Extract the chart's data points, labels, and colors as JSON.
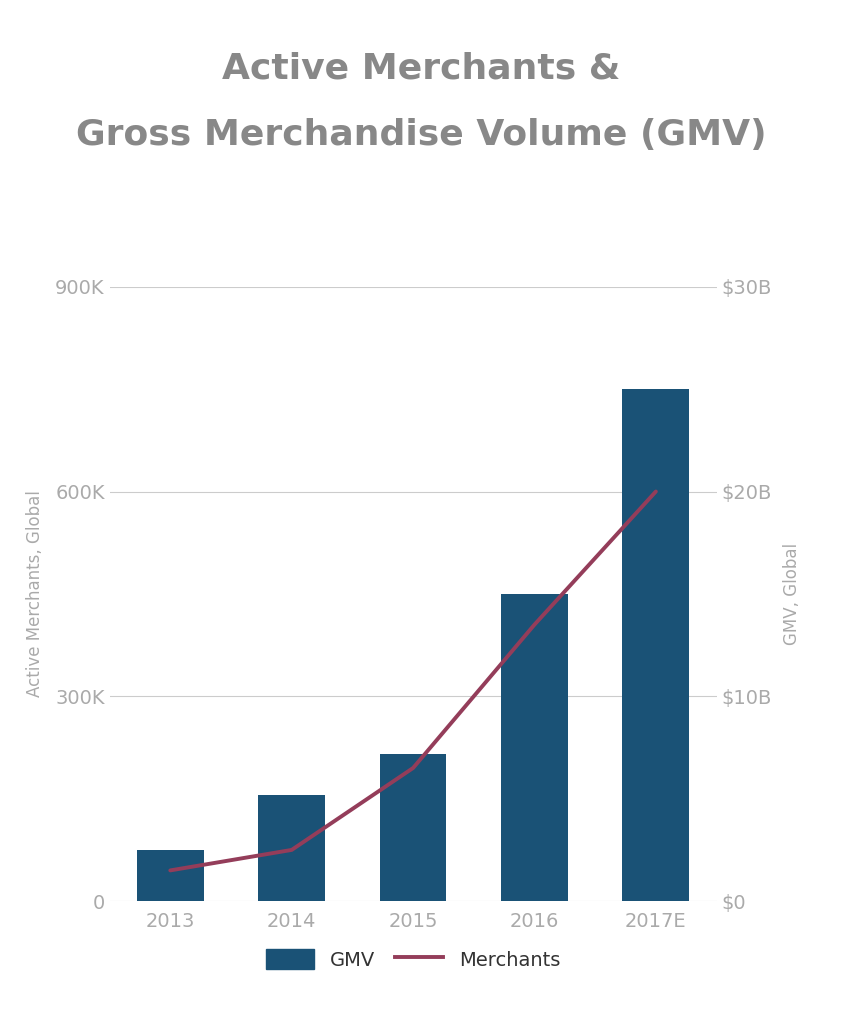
{
  "title_line1": "Active Merchants &",
  "title_line2": "Gross Merchandise Volume (GMV)",
  "years": [
    "2013",
    "2014",
    "2015",
    "2016",
    "2017E"
  ],
  "merchants": [
    75000,
    155000,
    215000,
    450000,
    750000
  ],
  "gmv_billions": [
    1.5,
    2.5,
    6.5,
    13.5,
    20.0
  ],
  "bar_color": "#1a5276",
  "line_color": "#943d5a",
  "left_ylim": [
    0,
    900000
  ],
  "right_ylim": [
    0,
    30
  ],
  "left_yticks": [
    0,
    300000,
    600000,
    900000
  ],
  "left_yticklabels": [
    "0",
    "300K",
    "600K",
    "900K"
  ],
  "right_yticks": [
    0,
    10,
    20,
    30
  ],
  "right_yticklabels": [
    "$0",
    "$10B",
    "$20B",
    "$30B"
  ],
  "ylabel_left": "Active Merchants, Global",
  "ylabel_right": "GMV, Global",
  "tick_label_color": "#aaaaaa",
  "axis_label_color": "#aaaaaa",
  "title_color": "#888888",
  "background_color": "#ffffff",
  "title_fontsize": 26,
  "axis_fontsize": 12,
  "tick_fontsize": 14,
  "legend_fontsize": 14,
  "bar_width": 0.55,
  "line_width": 2.8
}
